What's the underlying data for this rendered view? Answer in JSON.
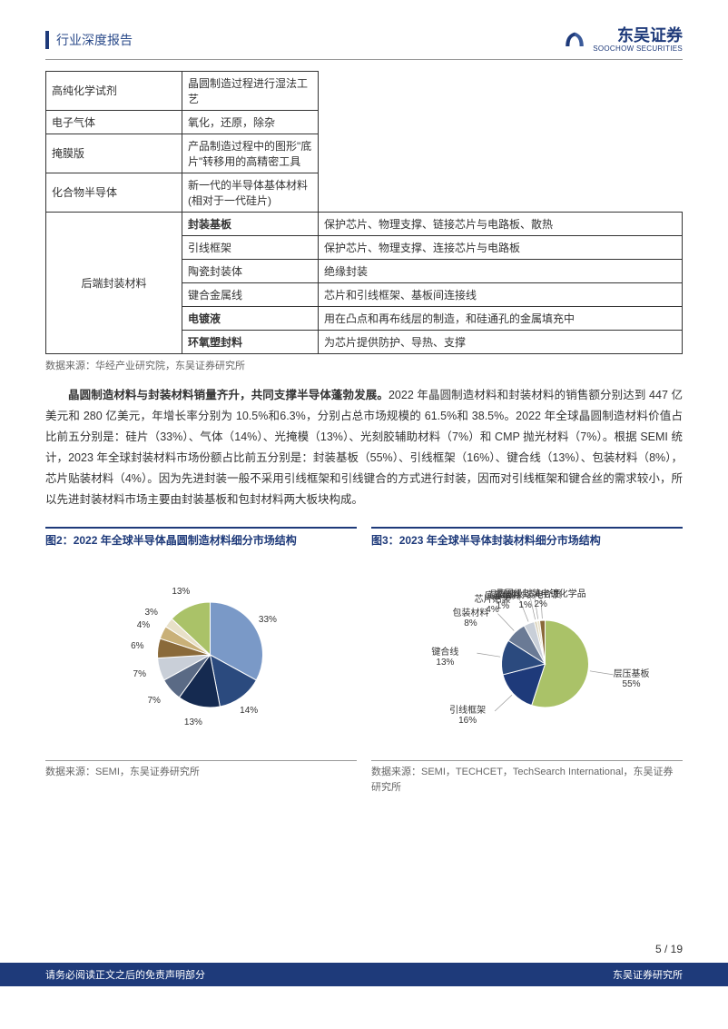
{
  "header": {
    "doc_type": "行业深度报告",
    "company_cn": "东吴证券",
    "company_en": "SOOCHOW SECURITIES"
  },
  "table": {
    "rows_group1": [
      {
        "name": "高纯化学试剂",
        "desc": "晶圆制造过程进行湿法工艺",
        "bold": false
      },
      {
        "name": "电子气体",
        "desc": "氧化，还原，除杂",
        "bold": false
      },
      {
        "name": "掩膜版",
        "desc": "产品制造过程中的图形\"底片\"转移用的高精密工具",
        "bold": false
      },
      {
        "name": "化合物半导体",
        "desc": "新一代的半导体基体材料(相对于一代硅片)",
        "bold": false
      }
    ],
    "cat2": "后端封装材料",
    "rows_group2": [
      {
        "name": "封装基板",
        "desc": "保护芯片、物理支撑、链接芯片与电路板、散热",
        "bold": true
      },
      {
        "name": "引线框架",
        "desc": "保护芯片、物理支撑、连接芯片与电路板",
        "bold": false
      },
      {
        "name": "陶瓷封装体",
        "desc": "绝缘封装",
        "bold": false
      },
      {
        "name": "键合金属线",
        "desc": "芯片和引线框架、基板间连接线",
        "bold": false
      },
      {
        "name": "电镀液",
        "desc": "用在凸点和再布线层的制造，和硅通孔的金属填充中",
        "bold": true
      },
      {
        "name": "环氧塑封料",
        "desc": "为芯片提供防护、导热、支撑",
        "bold": true
      }
    ],
    "source": "数据来源：华经产业研究院，东吴证券研究所"
  },
  "paragraph": {
    "lead": "晶圆制造材料与封装材料销量齐升，共同支撑半导体蓬勃发展。",
    "body": "2022 年晶圆制造材料和封装材料的销售额分别达到 447 亿美元和 280 亿美元，年增长率分别为 10.5%和6.3%，分别占总市场规模的 61.5%和 38.5%。2022 年全球晶圆制造材料价值占比前五分别是：硅片（33%）、气体（14%）、光掩模（13%）、光刻胶辅助材料（7%）和 CMP 抛光材料（7%）。根据 SEMI 统计，2023 年全球封装材料市场份额占比前五分别是：封装基板（55%）、引线框架（16%）、键合线（13%）、包装材料（8%），芯片贴装材料（4%）。因为先进封装一般不采用引线框架和引线键合的方式进行封装，因而对引线框架和键合丝的需求较小，所以先进封装材料市场主要由封装基板和包封材料两大板块构成。"
  },
  "chart2": {
    "label": "图2：",
    "title": "2022 年全球半导体晶圆制造材料细分市场结构",
    "type": "pie",
    "slices": [
      {
        "label": "33%",
        "value": 33,
        "color": "#7a99c7"
      },
      {
        "label": "14%",
        "value": 14,
        "color": "#2b4a7e"
      },
      {
        "label": "13%",
        "value": 13,
        "color": "#152a50"
      },
      {
        "label": "7%",
        "value": 7,
        "color": "#5a6a85"
      },
      {
        "label": "7%",
        "value": 7,
        "color": "#c9cfd8"
      },
      {
        "label": "6%",
        "value": 6,
        "color": "#8a6a3a"
      },
      {
        "label": "4%",
        "value": 4,
        "color": "#c9b078"
      },
      {
        "label": "3%",
        "value": 3,
        "color": "#e8e0c8"
      },
      {
        "label": "13%",
        "value": 13,
        "color": "#aac268"
      }
    ],
    "source": "数据来源：SEMI，东吴证券研究所"
  },
  "chart3": {
    "label": "图3：",
    "title": "2023 年全球半导体封装材料细分市场结构",
    "type": "pie",
    "slices": [
      {
        "label": "层压基板",
        "pct": "55%",
        "value": 55,
        "color": "#aac268"
      },
      {
        "label": "引线框架",
        "pct": "16%",
        "value": 16,
        "color": "#1e3a7a"
      },
      {
        "label": "键合线",
        "pct": "13%",
        "value": 13,
        "color": "#2b4a7e"
      },
      {
        "label": "包装材料",
        "pct": "8%",
        "value": 8,
        "color": "#6a7a95"
      },
      {
        "label": "芯片贴装",
        "pct": "4%",
        "value": 4,
        "color": "#c9cfd8"
      },
      {
        "label": "底部填充",
        "pct": "1%",
        "value": 1,
        "color": "#d8d0b8"
      },
      {
        "label": "晶圆级封装电介质",
        "pct": "1%",
        "value": 1,
        "color": "#e8e0c8"
      },
      {
        "label": "晶圆级封装电镀化学品",
        "pct": "2%",
        "value": 2,
        "color": "#8a6a3a"
      }
    ],
    "source": "数据来源：SEMI，TECHCET，TechSearch International，东吴证券研究所"
  },
  "footer": {
    "page": "5 / 19",
    "disclaimer": "请务必阅读正文之后的免责声明部分",
    "company": "东吴证券研究所"
  },
  "colors": {
    "brand": "#1e3a7a",
    "text": "#333333",
    "muted": "#666666"
  }
}
